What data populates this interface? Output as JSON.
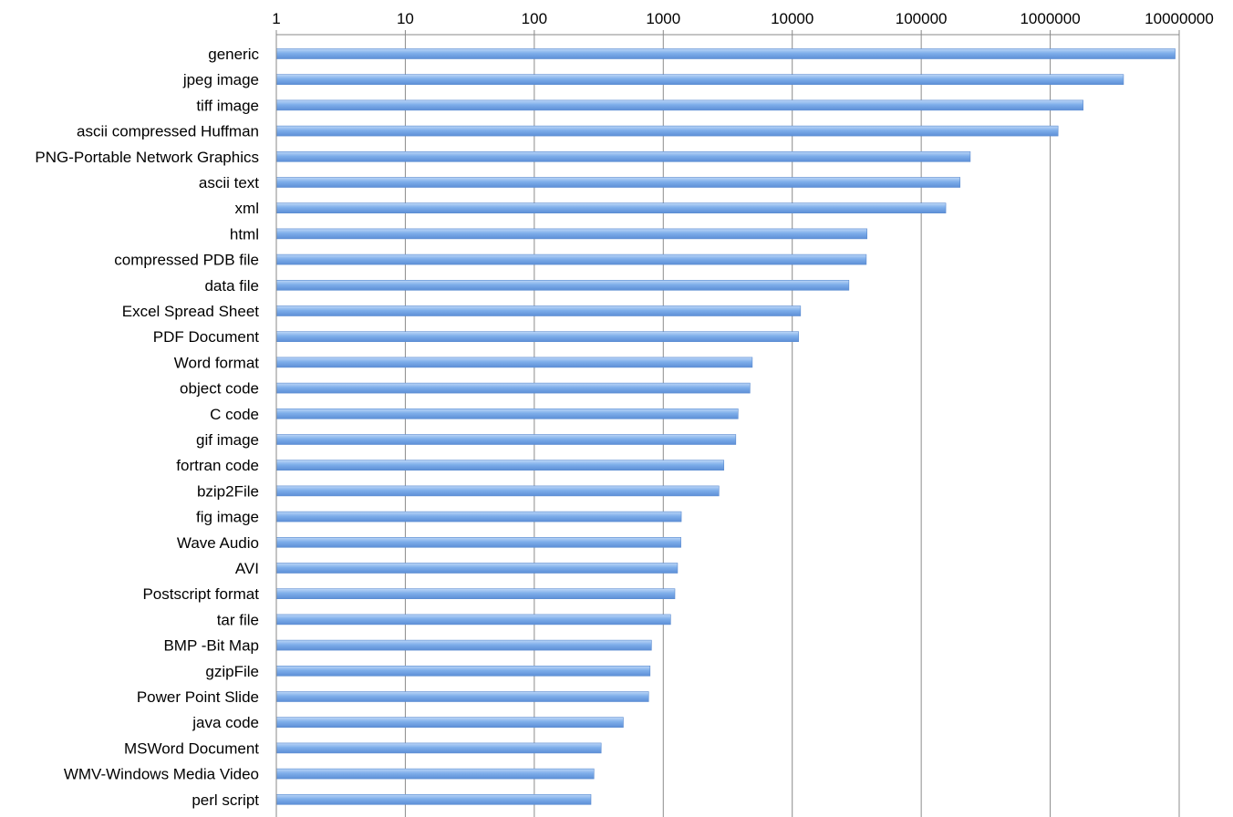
{
  "chart_data": {
    "type": "bar",
    "orientation": "horizontal",
    "x_scale": "log",
    "xlim": [
      1,
      10000000
    ],
    "x_ticks": [
      "1",
      "10",
      "100",
      "1000",
      "10000",
      "100000",
      "1000000",
      "10000000"
    ],
    "x_tick_values": [
      1,
      10,
      100,
      1000,
      10000,
      100000,
      1000000,
      10000000
    ],
    "x_axis_position": "top",
    "grid": true,
    "bar_color": "#6fa2e6",
    "categories": [
      "generic",
      "jpeg image",
      "tiff image",
      "ascii compressed Huffman",
      "PNG-Portable Network Graphics",
      "ascii text",
      "xml",
      "html",
      "compressed PDB file",
      "data file",
      "Excel Spread Sheet",
      "PDF Document",
      "Word format",
      "object code",
      "C code",
      "gif image",
      "fortran code",
      "bzip2File",
      "fig image",
      "Wave Audio",
      "AVI",
      "Postscript format",
      "tar file",
      "BMP -Bit Map",
      "gzipFile",
      "Power Point Slide",
      "java code",
      "MSWord Document",
      "WMV-Windows Media Video",
      "perl script"
    ],
    "values": [
      9300000,
      3700000,
      1800000,
      1150000,
      240000,
      200000,
      155000,
      38000,
      37500,
      27500,
      11600,
      11200,
      4900,
      4700,
      3800,
      3650,
      2950,
      2700,
      1380,
      1370,
      1290,
      1230,
      1140,
      810,
      790,
      770,
      490,
      330,
      290,
      275
    ]
  }
}
